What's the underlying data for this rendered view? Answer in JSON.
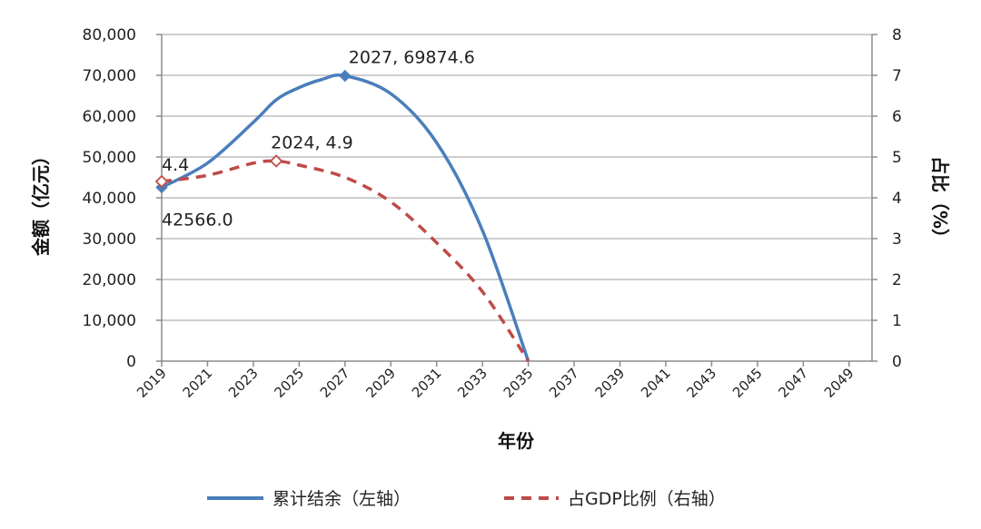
{
  "chart_data": {
    "type": "line",
    "xlabel": "年份",
    "ylabel_left": "金额（亿元）",
    "ylabel_right": "占比（%）",
    "x_ticks": [
      "2019",
      "2021",
      "2023",
      "2025",
      "2027",
      "2029",
      "2031",
      "2033",
      "2035",
      "2037",
      "2039",
      "2041",
      "2043",
      "2045",
      "2047",
      "2049"
    ],
    "x_range": [
      2019,
      2050
    ],
    "y_left_ticks": [
      "0",
      "10,000",
      "20,000",
      "30,000",
      "40,000",
      "50,000",
      "60,000",
      "70,000",
      "80,000"
    ],
    "y_left_range": [
      0,
      80000
    ],
    "y_right_ticks": [
      "0",
      "1",
      "2",
      "3",
      "4",
      "5",
      "6",
      "7",
      "8"
    ],
    "y_right_range": [
      0,
      8
    ],
    "grid": "horizontal",
    "legend_position": "bottom",
    "series": [
      {
        "name": "累计结余（左轴）",
        "axis": "left",
        "style": "solid",
        "color": "#4a7ebb",
        "x": [
          2019,
          2021,
          2023,
          2024,
          2025,
          2026,
          2027,
          2029,
          2031,
          2033,
          2035
        ],
        "y": [
          42566,
          48500,
          58500,
          64000,
          67000,
          69000,
          69874.6,
          65500,
          53500,
          32000,
          0
        ]
      },
      {
        "name": "占GDP比例（右轴）",
        "axis": "right",
        "style": "dashed",
        "color": "#be4b48",
        "x": [
          2019,
          2021,
          2023,
          2024,
          2025,
          2027,
          2029,
          2031,
          2033,
          2035
        ],
        "y": [
          4.4,
          4.55,
          4.85,
          4.9,
          4.8,
          4.5,
          3.9,
          2.9,
          1.7,
          0
        ]
      }
    ],
    "annotations": [
      {
        "text": "2027, 69874.6",
        "series": 0,
        "x": 2027,
        "y": 69874.6,
        "marker": true
      },
      {
        "text": "42566.0",
        "series": 0,
        "x": 2019,
        "y": 42566,
        "marker": true
      },
      {
        "text": "2024, 4.9",
        "series": 1,
        "x": 2024,
        "y": 4.9,
        "marker": true
      },
      {
        "text": "4.4",
        "series": 1,
        "x": 2019,
        "y": 4.4,
        "marker": true
      }
    ]
  }
}
